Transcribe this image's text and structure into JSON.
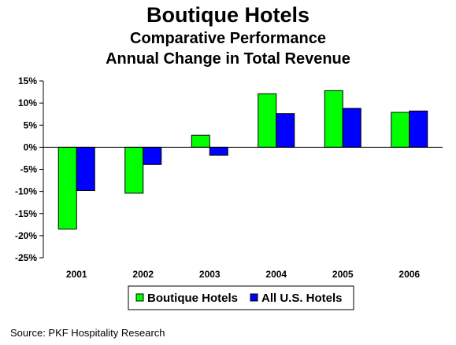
{
  "chart_data": {
    "type": "bar",
    "title": "Boutique Hotels",
    "subtitle_1": "Comparative Performance",
    "subtitle_2": "Annual Change in Total Revenue",
    "categories": [
      "2001",
      "2002",
      "2003",
      "2004",
      "2005",
      "2006"
    ],
    "series": [
      {
        "name": "Boutique Hotels",
        "color": "#00ff00",
        "values": [
          -18.5,
          -10.4,
          2.7,
          12.1,
          12.8,
          7.9
        ]
      },
      {
        "name": "All U.S. Hotels",
        "color": "#0000ff",
        "values": [
          -9.8,
          -3.9,
          -1.8,
          7.6,
          8.8,
          8.2
        ]
      }
    ],
    "yticks": [
      "15%",
      "10%",
      "5%",
      "0%",
      "-5%",
      "-10%",
      "-15%",
      "-20%",
      "-25%"
    ],
    "ylim": [
      -25,
      15
    ],
    "grid": false,
    "legend_position": "bottom-center"
  },
  "source": "Source: PKF Hospitality Research"
}
